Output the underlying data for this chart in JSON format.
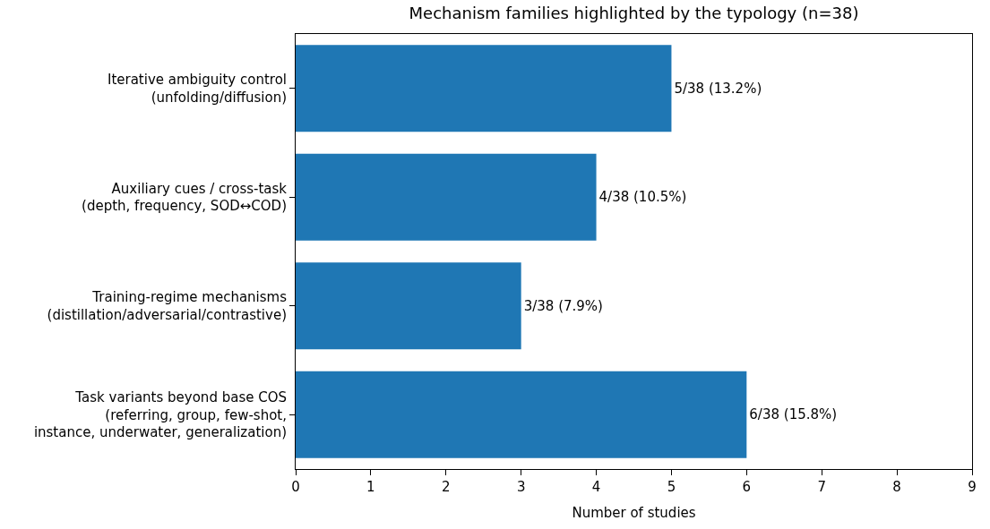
{
  "chart_data": {
    "type": "bar",
    "orientation": "horizontal",
    "title": "Mechanism families highlighted by the typology (n=38)",
    "xlabel": "Number of studies",
    "categories": [
      "Iterative ambiguity control\n(unfolding/diffusion)",
      "Auxiliary cues / cross-task\n(depth, frequency, SOD↔COD)",
      "Training-regime mechanisms\n(distillation/adversarial/contrastive)",
      "Task variants beyond base COS\n(referring, group, few-shot,\ninstance, underwater, generalization)"
    ],
    "values": [
      5,
      4,
      3,
      6
    ],
    "value_labels": [
      "5/38 (13.2%)",
      "4/38 (10.5%)",
      "3/38 (7.9%)",
      "6/38 (15.8%)"
    ],
    "color": "#1f77b4",
    "xlim": [
      0,
      9
    ],
    "xticks": [
      0,
      1,
      2,
      3,
      4,
      5,
      6,
      7,
      8,
      9
    ]
  }
}
